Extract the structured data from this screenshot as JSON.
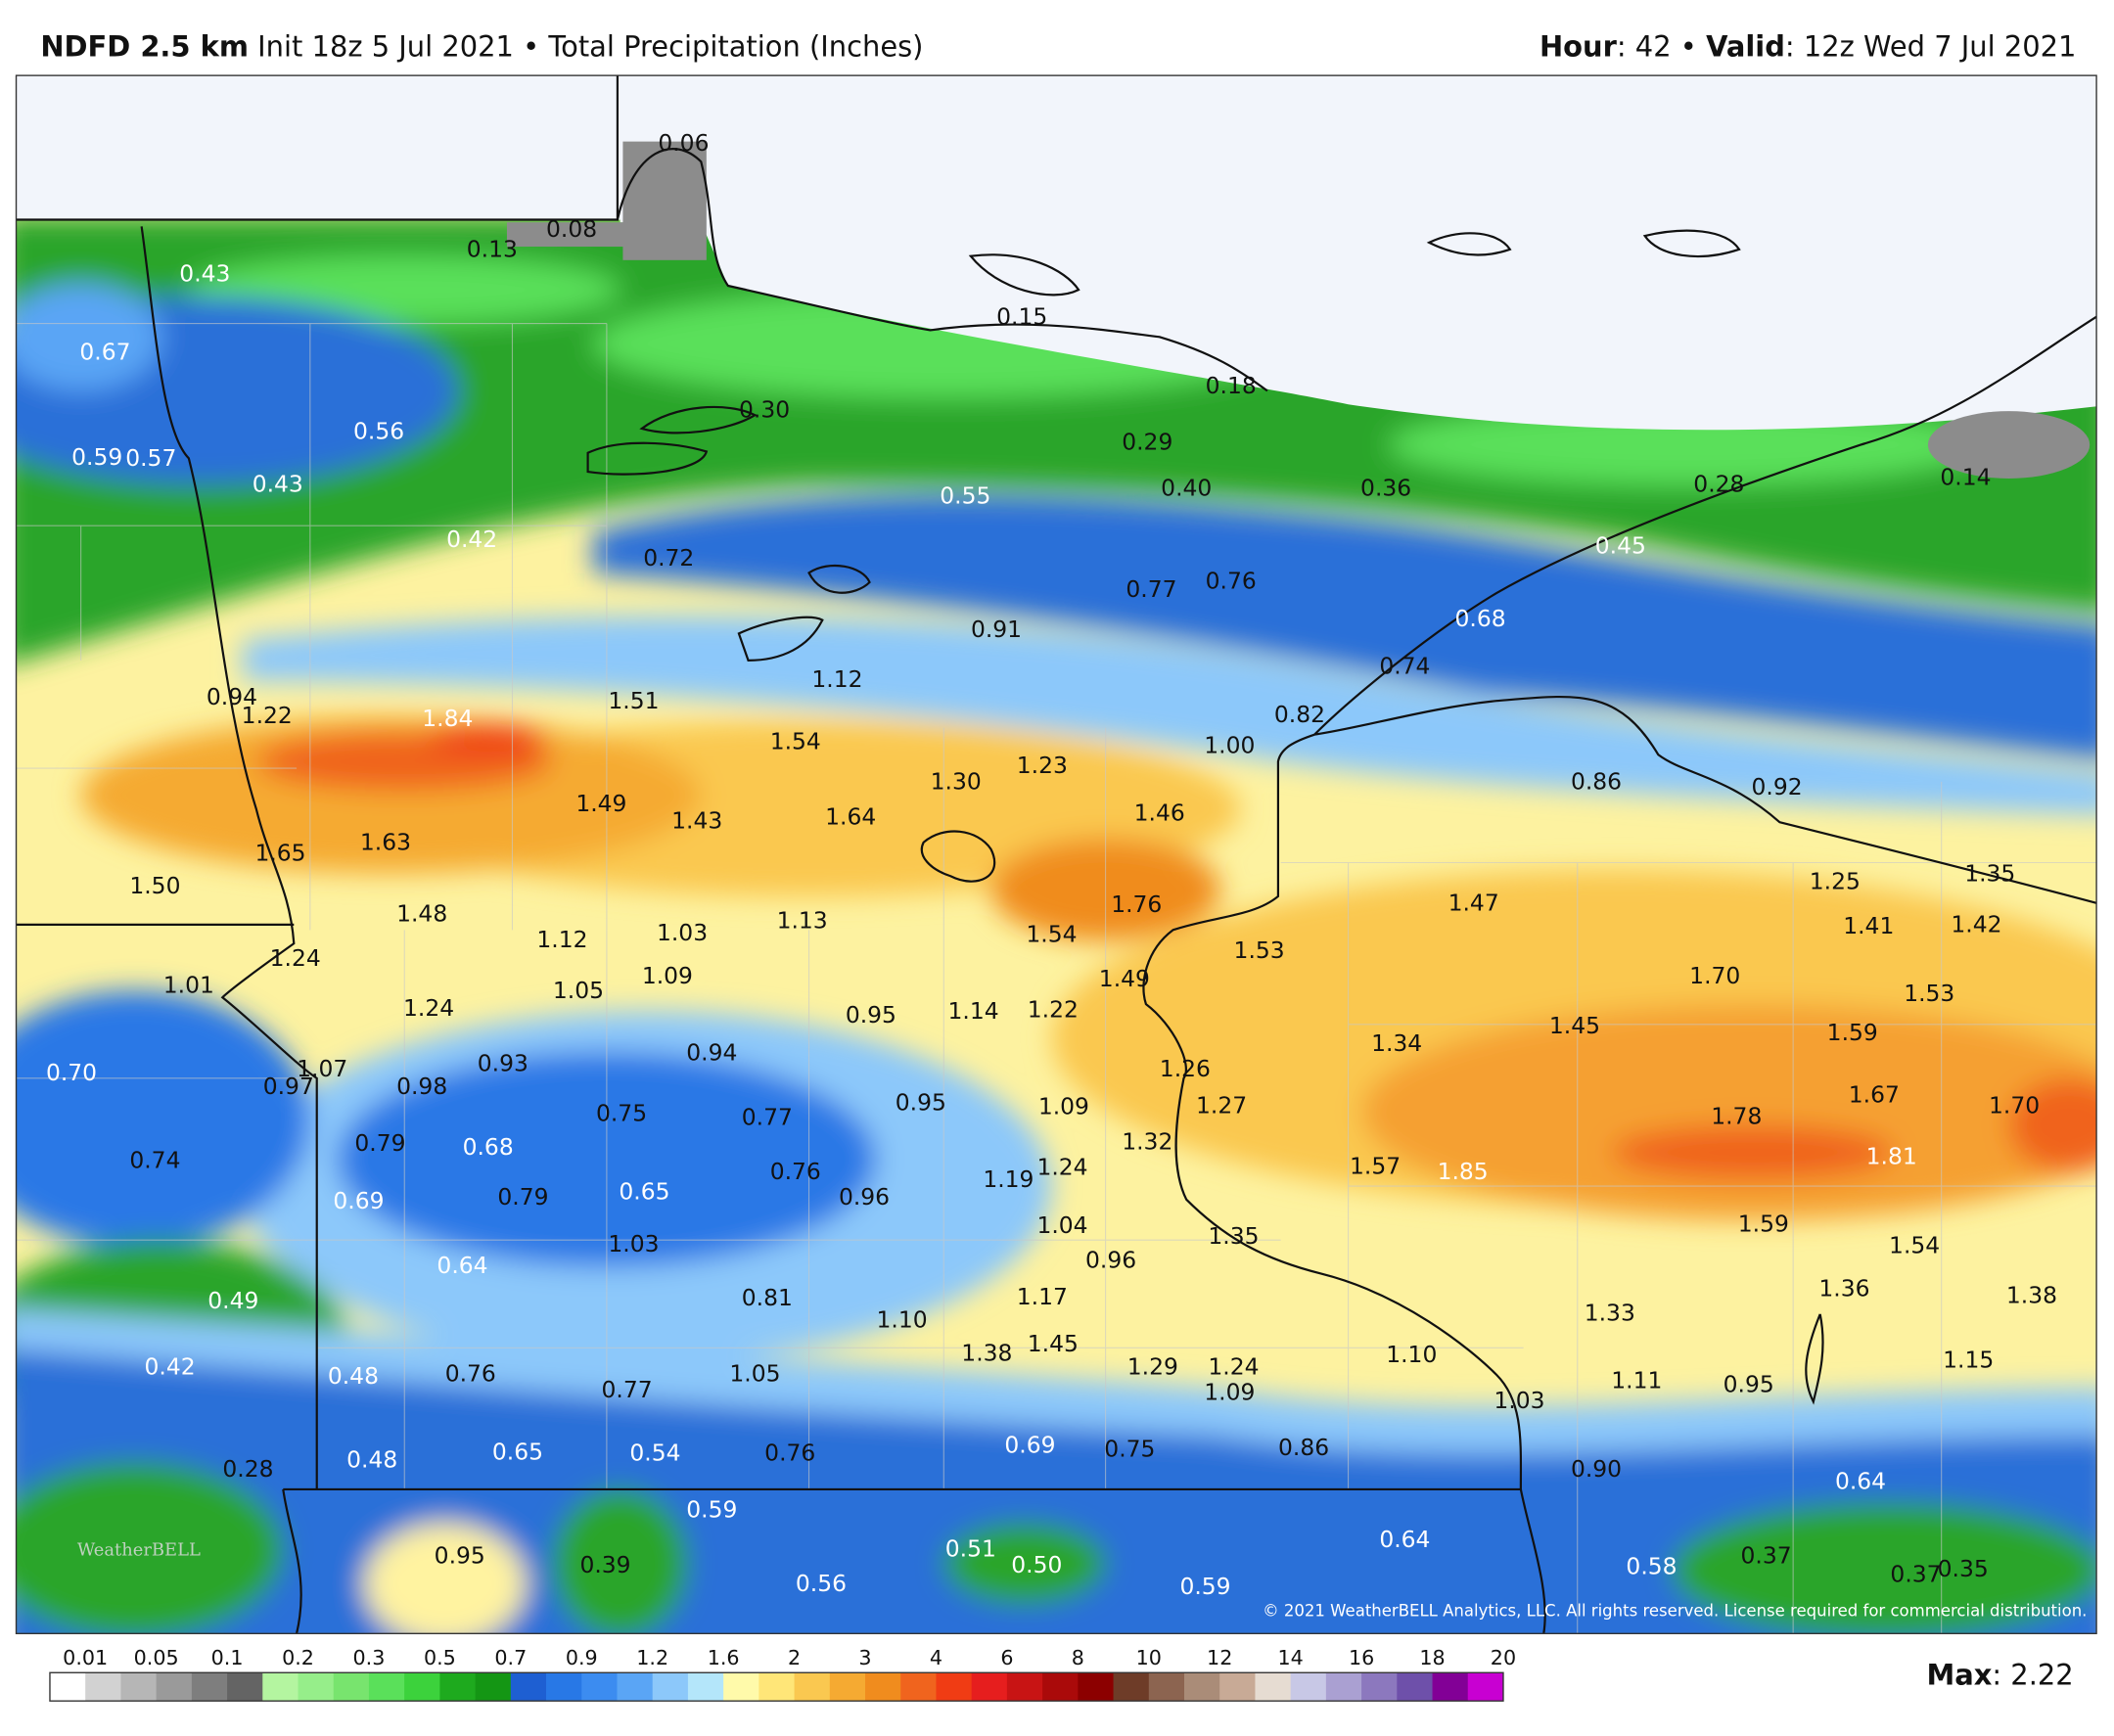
{
  "header": {
    "model": "NDFD 2.5 km",
    "init": "Init 18z 5 Jul 2021",
    "sep": "•",
    "product": "Total Precipitation (Inches)",
    "hour_label": "Hour",
    "hour_value": ": 42",
    "valid_label": "Valid",
    "valid_value": ": 12z Wed 7 Jul 2021"
  },
  "map": {
    "labels": [
      "0.06",
      "0.08",
      "0.13",
      "0.43",
      "0.67",
      "0.56",
      "0.30",
      "0.15",
      "0.18",
      "0.59",
      "0.57",
      "0.43",
      "0.29",
      "0.55",
      "0.40",
      "0.36",
      "0.28",
      "0.14",
      "0.42",
      "0.72",
      "0.45",
      "0.77",
      "0.76",
      "0.91",
      "0.68",
      "0.74",
      "0.94",
      "1.22",
      "1.84",
      "1.51",
      "1.12",
      "0.82",
      "1.54",
      "1.00",
      "1.23",
      "1.30",
      "0.86",
      "0.92",
      "1.49",
      "1.43",
      "1.64",
      "1.46",
      "1.65",
      "1.63",
      "1.50",
      "1.25",
      "1.35",
      "1.76",
      "1.47",
      "1.48",
      "1.13",
      "1.03",
      "1.12",
      "1.54",
      "1.41",
      "1.42",
      "1.53",
      "1.24",
      "1.09",
      "1.49",
      "1.70",
      "1.01",
      "1.05",
      "1.53",
      "1.24",
      "0.95",
      "1.14",
      "1.22",
      "1.45",
      "1.59",
      "1.34",
      "0.94",
      "1.07",
      "0.93",
      "0.98",
      "1.26",
      "0.70",
      "0.97",
      "1.67",
      "0.75",
      "0.77",
      "0.95",
      "1.09",
      "1.27",
      "1.78",
      "1.70",
      "0.79",
      "0.68",
      "1.32",
      "1.81",
      "0.74",
      "0.76",
      "1.24",
      "1.57",
      "1.85",
      "1.19",
      "0.69",
      "0.79",
      "0.65",
      "0.96",
      "1.59",
      "1.04",
      "1.35",
      "1.54",
      "1.03",
      "0.96",
      "0.64",
      "1.36",
      "1.38",
      "0.49",
      "0.81",
      "1.17",
      "1.10",
      "1.33",
      "1.38",
      "1.45",
      "1.29",
      "1.24",
      "1.15",
      "0.42",
      "0.48",
      "0.76",
      "1.05",
      "1.10",
      "0.77",
      "1.09",
      "1.11",
      "0.95",
      "1.03",
      "0.69",
      "0.75",
      "0.86",
      "0.65",
      "0.54",
      "0.76",
      "0.28",
      "0.48",
      "0.90",
      "0.64",
      "0.59",
      "0.64",
      "0.51",
      "0.50",
      "0.95",
      "0.39",
      "0.58",
      "0.37",
      "0.56",
      "0.59",
      "0.37",
      "0.35"
    ],
    "copyright": "© 2021 WeatherBELL Analytics, LLC. All rights reserved. License required for commercial distribution.",
    "logo": "WeatherBELL"
  },
  "legend": {
    "labels": [
      "0.01",
      "0.05",
      "0.1",
      "0.2",
      "0.3",
      "0.5",
      "0.7",
      "0.9",
      "1.2",
      "1.6",
      "2",
      "3",
      "4",
      "6",
      "8",
      "10",
      "12",
      "14",
      "16",
      "18",
      "20"
    ],
    "colors": [
      "#ffffff",
      "#d2d2d2",
      "#b6b6b6",
      "#9a9a9a",
      "#7e7e7e",
      "#646464",
      "#b4f5a0",
      "#96ee8a",
      "#78e46e",
      "#5ae05a",
      "#3cd23c",
      "#1eaa1e",
      "#149614",
      "#1e5fd2",
      "#2878e6",
      "#3c8cf0",
      "#5aa5f5",
      "#8cc8fa",
      "#b4e6fa",
      "#fffaaa",
      "#ffe678",
      "#fac850",
      "#f5aa32",
      "#f08c1e",
      "#f0641e",
      "#f03c14",
      "#e61e1e",
      "#c81414",
      "#aa0a0a",
      "#8c0000",
      "#6e3c28",
      "#8c6450",
      "#aa8c78",
      "#c8aa96",
      "#e6dcd2",
      "#c8c8e6",
      "#aaa0d2",
      "#8c78be",
      "#6e50aa",
      "#820096",
      "#c800d2"
    ],
    "max_label": "Max",
    "max_value": ": 2.22"
  }
}
